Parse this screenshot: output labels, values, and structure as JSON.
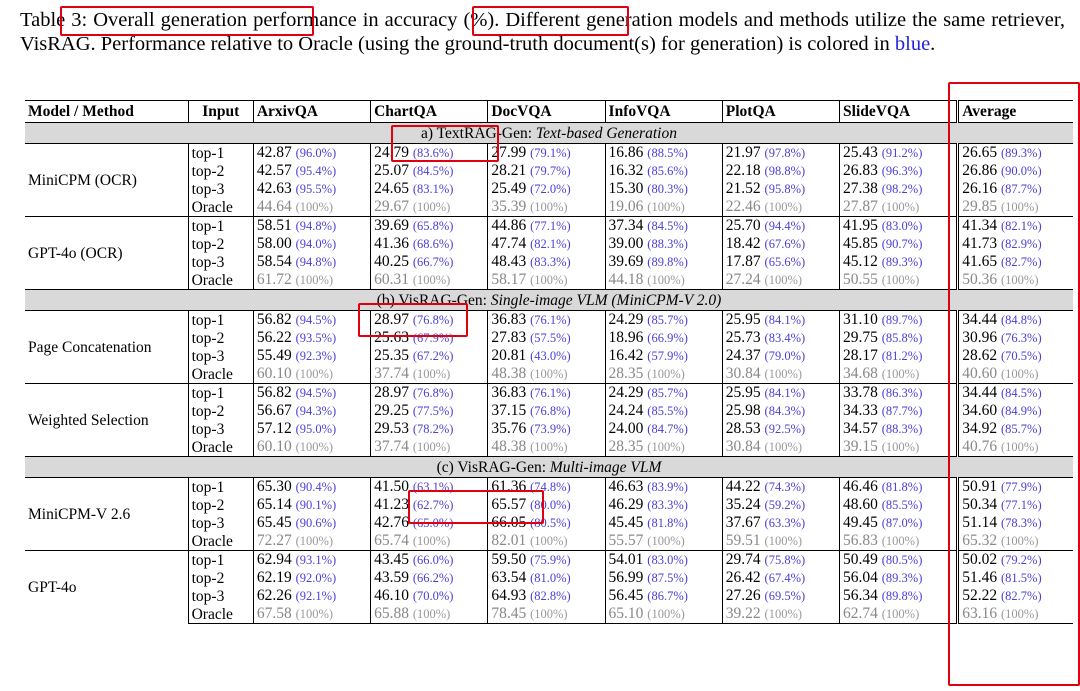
{
  "caption": {
    "prefix": "Table 3: ",
    "part1": "Overall generation performance in accuracy (%). Different generation models and methods utilize the same retriever, VisRAG. Performance relative to Oracle (using the ground-truth document(s) for generation) is colored in ",
    "blue_word": "blue",
    "suffix": "."
  },
  "headers": [
    "Model / Method",
    "Input",
    "ArxivQA",
    "ChartQA",
    "DocVQA",
    "InfoVQA",
    "PlotQA",
    "SlideVQA",
    "Average"
  ],
  "sections": [
    {
      "title_plain": "a) TextRAG-Gen: ",
      "title_italic": "Text-based Generation",
      "groups": [
        {
          "model": "MiniCPM (OCR)",
          "rows": [
            {
              "input": "top-1",
              "cells": [
                [
                  "42.87",
                  "(96.0%)"
                ],
                [
                  "24.79",
                  "(83.6%)"
                ],
                [
                  "27.99",
                  "(79.1%)"
                ],
                [
                  "16.86",
                  "(88.5%)"
                ],
                [
                  "21.97",
                  "(97.8%)"
                ],
                [
                  "25.43",
                  "(91.2%)"
                ],
                [
                  "26.65",
                  "(89.3%)"
                ]
              ]
            },
            {
              "input": "top-2",
              "cells": [
                [
                  "42.57",
                  "(95.4%)"
                ],
                [
                  "25.07",
                  "(84.5%)"
                ],
                [
                  "28.21",
                  "(79.7%)"
                ],
                [
                  "16.32",
                  "(85.6%)"
                ],
                [
                  "22.18",
                  "(98.8%)"
                ],
                [
                  "26.83",
                  "(96.3%)"
                ],
                [
                  "26.86",
                  "(90.0%)"
                ]
              ]
            },
            {
              "input": "top-3",
              "cells": [
                [
                  "42.63",
                  "(95.5%)"
                ],
                [
                  "24.65",
                  "(83.1%)"
                ],
                [
                  "25.49",
                  "(72.0%)"
                ],
                [
                  "15.30",
                  "(80.3%)"
                ],
                [
                  "21.52",
                  "(95.8%)"
                ],
                [
                  "27.38",
                  "(98.2%)"
                ],
                [
                  "26.16",
                  "(87.7%)"
                ]
              ]
            },
            {
              "input": "Oracle",
              "cells": [
                [
                  "44.64",
                  "(100%)"
                ],
                [
                  "29.67",
                  "(100%)"
                ],
                [
                  "35.39",
                  "(100%)"
                ],
                [
                  "19.06",
                  "(100%)"
                ],
                [
                  "22.46",
                  "(100%)"
                ],
                [
                  "27.87",
                  "(100%)"
                ],
                [
                  "29.85",
                  "(100%)"
                ]
              ]
            }
          ]
        },
        {
          "model": "GPT-4o (OCR)",
          "rows": [
            {
              "input": "top-1",
              "cells": [
                [
                  "58.51",
                  "(94.8%)"
                ],
                [
                  "39.69",
                  "(65.8%)"
                ],
                [
                  "44.86",
                  "(77.1%)"
                ],
                [
                  "37.34",
                  "(84.5%)"
                ],
                [
                  "25.70",
                  "(94.4%)"
                ],
                [
                  "41.95",
                  "(83.0%)"
                ],
                [
                  "41.34",
                  "(82.1%)"
                ]
              ]
            },
            {
              "input": "top-2",
              "cells": [
                [
                  "58.00",
                  "(94.0%)"
                ],
                [
                  "41.36",
                  "(68.6%)"
                ],
                [
                  "47.74",
                  "(82.1%)"
                ],
                [
                  "39.00",
                  "(88.3%)"
                ],
                [
                  "18.42",
                  "(67.6%)"
                ],
                [
                  "45.85",
                  "(90.7%)"
                ],
                [
                  "41.73",
                  "(82.9%)"
                ]
              ]
            },
            {
              "input": "top-3",
              "cells": [
                [
                  "58.54",
                  "(94.8%)"
                ],
                [
                  "40.25",
                  "(66.7%)"
                ],
                [
                  "48.43",
                  "(83.3%)"
                ],
                [
                  "39.69",
                  "(89.8%)"
                ],
                [
                  "17.87",
                  "(65.6%)"
                ],
                [
                  "45.12",
                  "(89.3%)"
                ],
                [
                  "41.65",
                  "(82.7%)"
                ]
              ]
            },
            {
              "input": "Oracle",
              "cells": [
                [
                  "61.72",
                  "(100%)"
                ],
                [
                  "60.31",
                  "(100%)"
                ],
                [
                  "58.17",
                  "(100%)"
                ],
                [
                  "44.18",
                  "(100%)"
                ],
                [
                  "27.24",
                  "(100%)"
                ],
                [
                  "50.55",
                  "(100%)"
                ],
                [
                  "50.36",
                  "(100%)"
                ]
              ]
            }
          ]
        }
      ]
    },
    {
      "title_plain": "(b) VisRAG-Gen: ",
      "title_italic": "Single-image VLM (MiniCPM-V 2.0)",
      "groups": [
        {
          "model": "Page Concatenation",
          "rows": [
            {
              "input": "top-1",
              "cells": [
                [
                  "56.82",
                  "(94.5%)"
                ],
                [
                  "28.97",
                  "(76.8%)"
                ],
                [
                  "36.83",
                  "(76.1%)"
                ],
                [
                  "24.29",
                  "(85.7%)"
                ],
                [
                  "25.95",
                  "(84.1%)"
                ],
                [
                  "31.10",
                  "(89.7%)"
                ],
                [
                  "34.44",
                  "(84.8%)"
                ]
              ]
            },
            {
              "input": "top-2",
              "cells": [
                [
                  "56.22",
                  "(93.5%)"
                ],
                [
                  "25.63",
                  "(67.9%)"
                ],
                [
                  "27.83",
                  "(57.5%)"
                ],
                [
                  "18.96",
                  "(66.9%)"
                ],
                [
                  "25.73",
                  "(83.4%)"
                ],
                [
                  "29.75",
                  "(85.8%)"
                ],
                [
                  "30.96",
                  "(76.3%)"
                ]
              ]
            },
            {
              "input": "top-3",
              "cells": [
                [
                  "55.49",
                  "(92.3%)"
                ],
                [
                  "25.35",
                  "(67.2%)"
                ],
                [
                  "20.81",
                  "(43.0%)"
                ],
                [
                  "16.42",
                  "(57.9%)"
                ],
                [
                  "24.37",
                  "(79.0%)"
                ],
                [
                  "28.17",
                  "(81.2%)"
                ],
                [
                  "28.62",
                  "(70.5%)"
                ]
              ]
            },
            {
              "input": "Oracle",
              "cells": [
                [
                  "60.10",
                  "(100%)"
                ],
                [
                  "37.74",
                  "(100%)"
                ],
                [
                  "48.38",
                  "(100%)"
                ],
                [
                  "28.35",
                  "(100%)"
                ],
                [
                  "30.84",
                  "(100%)"
                ],
                [
                  "34.68",
                  "(100%)"
                ],
                [
                  "40.60",
                  "(100%)"
                ]
              ]
            }
          ]
        },
        {
          "model": "Weighted Selection",
          "rows": [
            {
              "input": "top-1",
              "cells": [
                [
                  "56.82",
                  "(94.5%)"
                ],
                [
                  "28.97",
                  "(76.8%)"
                ],
                [
                  "36.83",
                  "(76.1%)"
                ],
                [
                  "24.29",
                  "(85.7%)"
                ],
                [
                  "25.95",
                  "(84.1%)"
                ],
                [
                  "33.78",
                  "(86.3%)"
                ],
                [
                  "34.44",
                  "(84.5%)"
                ]
              ]
            },
            {
              "input": "top-2",
              "cells": [
                [
                  "56.67",
                  "(94.3%)"
                ],
                [
                  "29.25",
                  "(77.5%)"
                ],
                [
                  "37.15",
                  "(76.8%)"
                ],
                [
                  "24.24",
                  "(85.5%)"
                ],
                [
                  "25.98",
                  "(84.3%)"
                ],
                [
                  "34.33",
                  "(87.7%)"
                ],
                [
                  "34.60",
                  "(84.9%)"
                ]
              ]
            },
            {
              "input": "top-3",
              "cells": [
                [
                  "57.12",
                  "(95.0%)"
                ],
                [
                  "29.53",
                  "(78.2%)"
                ],
                [
                  "35.76",
                  "(73.9%)"
                ],
                [
                  "24.00",
                  "(84.7%)"
                ],
                [
                  "28.53",
                  "(92.5%)"
                ],
                [
                  "34.57",
                  "(88.3%)"
                ],
                [
                  "34.92",
                  "(85.7%)"
                ]
              ]
            },
            {
              "input": "Oracle",
              "cells": [
                [
                  "60.10",
                  "(100%)"
                ],
                [
                  "37.74",
                  "(100%)"
                ],
                [
                  "48.38",
                  "(100%)"
                ],
                [
                  "28.35",
                  "(100%)"
                ],
                [
                  "30.84",
                  "(100%)"
                ],
                [
                  "39.15",
                  "(100%)"
                ],
                [
                  "40.76",
                  "(100%)"
                ]
              ]
            }
          ]
        }
      ]
    },
    {
      "title_plain": "(c) VisRAG-Gen: ",
      "title_italic": "Multi-image VLM",
      "groups": [
        {
          "model": "MiniCPM-V 2.6",
          "rows": [
            {
              "input": "top-1",
              "cells": [
                [
                  "65.30",
                  "(90.4%)"
                ],
                [
                  "41.50",
                  "(63.1%)"
                ],
                [
                  "61.36",
                  "(74.8%)"
                ],
                [
                  "46.63",
                  "(83.9%)"
                ],
                [
                  "44.22",
                  "(74.3%)"
                ],
                [
                  "46.46",
                  "(81.8%)"
                ],
                [
                  "50.91",
                  "(77.9%)"
                ]
              ]
            },
            {
              "input": "top-2",
              "cells": [
                [
                  "65.14",
                  "(90.1%)"
                ],
                [
                  "41.23",
                  "(62.7%)"
                ],
                [
                  "65.57",
                  "(80.0%)"
                ],
                [
                  "46.29",
                  "(83.3%)"
                ],
                [
                  "35.24",
                  "(59.2%)"
                ],
                [
                  "48.60",
                  "(85.5%)"
                ],
                [
                  "50.34",
                  "(77.1%)"
                ]
              ]
            },
            {
              "input": "top-3",
              "cells": [
                [
                  "65.45",
                  "(90.6%)"
                ],
                [
                  "42.76",
                  "(65.0%)"
                ],
                [
                  "66.05",
                  "(80.5%)"
                ],
                [
                  "45.45",
                  "(81.8%)"
                ],
                [
                  "37.67",
                  "(63.3%)"
                ],
                [
                  "49.45",
                  "(87.0%)"
                ],
                [
                  "51.14",
                  "(78.3%)"
                ]
              ]
            },
            {
              "input": "Oracle",
              "cells": [
                [
                  "72.27",
                  "(100%)"
                ],
                [
                  "65.74",
                  "(100%)"
                ],
                [
                  "82.01",
                  "(100%)"
                ],
                [
                  "55.57",
                  "(100%)"
                ],
                [
                  "59.51",
                  "(100%)"
                ],
                [
                  "56.83",
                  "(100%)"
                ],
                [
                  "65.32",
                  "(100%)"
                ]
              ]
            }
          ]
        },
        {
          "model": "GPT-4o",
          "rows": [
            {
              "input": "top-1",
              "cells": [
                [
                  "62.94",
                  "(93.1%)"
                ],
                [
                  "43.45",
                  "(66.0%)"
                ],
                [
                  "59.50",
                  "(75.9%)"
                ],
                [
                  "54.01",
                  "(83.0%)"
                ],
                [
                  "29.74",
                  "(75.8%)"
                ],
                [
                  "50.49",
                  "(80.5%)"
                ],
                [
                  "50.02",
                  "(79.2%)"
                ]
              ]
            },
            {
              "input": "top-2",
              "cells": [
                [
                  "62.19",
                  "(92.0%)"
                ],
                [
                  "43.59",
                  "(66.2%)"
                ],
                [
                  "63.54",
                  "(81.0%)"
                ],
                [
                  "56.99",
                  "(87.5%)"
                ],
                [
                  "26.42",
                  "(67.4%)"
                ],
                [
                  "56.04",
                  "(89.3%)"
                ],
                [
                  "51.46",
                  "(81.5%)"
                ]
              ]
            },
            {
              "input": "top-3",
              "cells": [
                [
                  "62.26",
                  "(92.1%)"
                ],
                [
                  "46.10",
                  "(70.0%)"
                ],
                [
                  "64.93",
                  "(82.8%)"
                ],
                [
                  "56.45",
                  "(86.7%)"
                ],
                [
                  "27.26",
                  "(69.5%)"
                ],
                [
                  "56.34",
                  "(89.8%)"
                ],
                [
                  "52.22",
                  "(82.7%)"
                ]
              ]
            },
            {
              "input": "Oracle",
              "cells": [
                [
                  "67.58",
                  "(100%)"
                ],
                [
                  "65.88",
                  "(100%)"
                ],
                [
                  "78.45",
                  "(100%)"
                ],
                [
                  "65.10",
                  "(100%)"
                ],
                [
                  "39.22",
                  "(100%)"
                ],
                [
                  "62.74",
                  "(100%)"
                ],
                [
                  "63.16",
                  "(100%)"
                ]
              ]
            }
          ]
        }
      ]
    }
  ],
  "colors": {
    "relative_blue": "#4b3fd6",
    "oracle_gray": "#888888",
    "highlight_red": "#e0000f",
    "section_bg": "#d9d9d9"
  }
}
